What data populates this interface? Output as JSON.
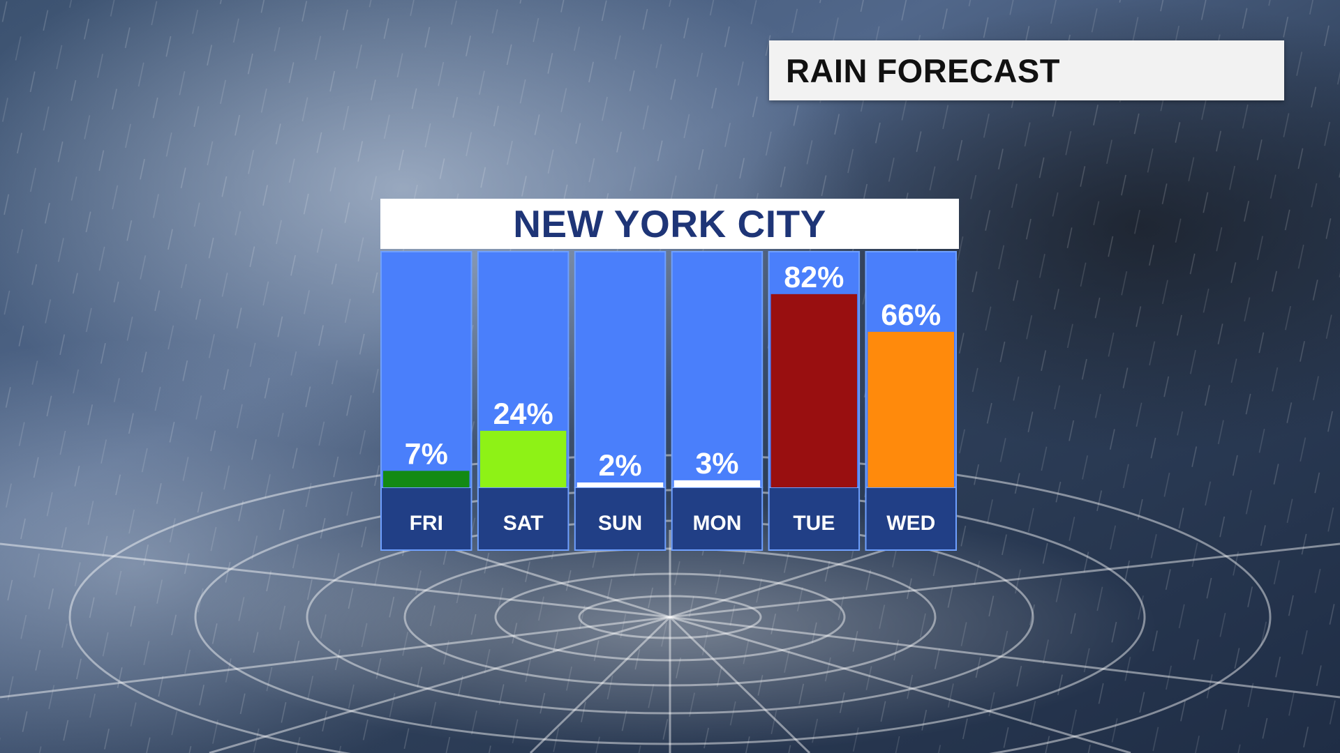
{
  "header": {
    "title": "RAIN FORECAST"
  },
  "panel": {
    "city": "NEW YORK CITY"
  },
  "chart_data": {
    "type": "bar",
    "title": "NEW YORK CITY",
    "categories": [
      "FRI",
      "SAT",
      "SUN",
      "MON",
      "TUE",
      "WED"
    ],
    "values": [
      7,
      24,
      2,
      3,
      82,
      66
    ],
    "labels": [
      "7%",
      "24%",
      "2%",
      "3%",
      "82%",
      "66%"
    ],
    "ylim": [
      0,
      100
    ],
    "unit": "%",
    "grid": false,
    "bar_colors": [
      "#138a14",
      "#8ef216",
      "#ffffff",
      "#ffffff",
      "#990f10",
      "#ff8a0c"
    ],
    "column_color": "#4a7ffb",
    "day_cell_color": "#213f86",
    "border_color": "#6fa0ff"
  }
}
